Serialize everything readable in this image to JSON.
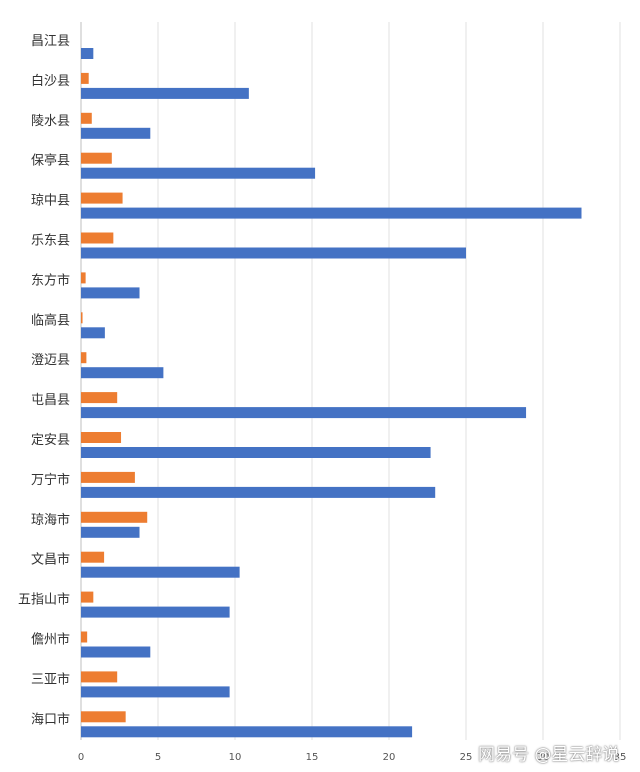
{
  "chart_data": {
    "type": "bar",
    "orientation": "horizontal",
    "categories": [
      "昌江县",
      "白沙县",
      "陵水县",
      "保亭县",
      "琼中县",
      "乐东县",
      "东方市",
      "临高县",
      "澄迈县",
      "屯昌县",
      "定安县",
      "万宁市",
      "琼海市",
      "文昌市",
      "五指山市",
      "儋州市",
      "三亚市",
      "海口市"
    ],
    "series": [
      {
        "color": "#ed7d31",
        "values": [
          0.0,
          0.5,
          0.7,
          2.0,
          2.7,
          2.1,
          0.3,
          0.1,
          0.35,
          2.35,
          2.6,
          3.5,
          4.3,
          1.5,
          0.8,
          0.4,
          2.35,
          2.9
        ]
      },
      {
        "color": "#4472c4",
        "values": [
          0.8,
          10.9,
          4.5,
          15.2,
          32.5,
          25.0,
          3.8,
          1.55,
          5.35,
          28.9,
          22.7,
          23.0,
          3.8,
          10.3,
          9.65,
          4.5,
          9.65,
          21.5
        ]
      }
    ],
    "xlim": [
      0,
      35
    ],
    "xticks": [
      "0",
      "5",
      "10",
      "15",
      "20",
      "25",
      "30",
      "35"
    ],
    "grid": true,
    "legend": "none",
    "title": "",
    "xlabel": "",
    "ylabel": ""
  },
  "watermark": {
    "text": "网易号 @星云辞说"
  }
}
